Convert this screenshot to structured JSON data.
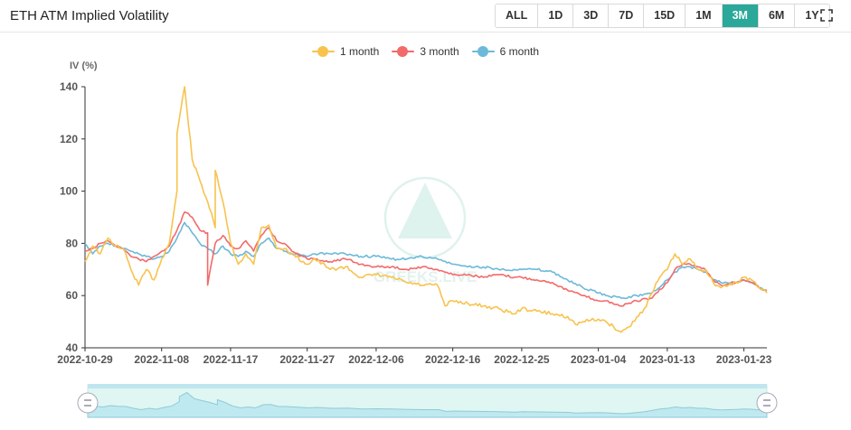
{
  "header": {
    "title": "ETH ATM Implied Volatility",
    "ranges": [
      "ALL",
      "1D",
      "3D",
      "7D",
      "15D",
      "1M",
      "3M",
      "6M",
      "1Y"
    ],
    "active_range": "3M"
  },
  "icons": {
    "fullscreen": "fullscreen-icon",
    "zoom_handle": "drag-handle-icon",
    "watermark": "greeks-live-logo"
  },
  "watermark_text": "GREEKS.LIVE",
  "chart_data": {
    "type": "line",
    "title": "",
    "ylabel": "IV (%)",
    "xlabel": "",
    "ylim": [
      40,
      140
    ],
    "yticks": [
      40,
      60,
      80,
      100,
      120,
      140
    ],
    "xlim": [
      "2022-10-29",
      "2023-01-26"
    ],
    "xticks": [
      "2022-10-29",
      "2022-11-08",
      "2022-11-17",
      "2022-11-27",
      "2022-12-06",
      "2022-12-16",
      "2022-12-25",
      "2023-01-04",
      "2023-01-13",
      "2023-01-23"
    ],
    "grid": false,
    "legend": "top-center",
    "series": [
      {
        "name": "1 month",
        "color": "#f7c34e",
        "points": [
          [
            "2022-10-29",
            73
          ],
          [
            "2022-10-30",
            79
          ],
          [
            "2022-10-31",
            76
          ],
          [
            "2022-11-01",
            82
          ],
          [
            "2022-11-02",
            79
          ],
          [
            "2022-11-03",
            78
          ],
          [
            "2022-11-04",
            70
          ],
          [
            "2022-11-05",
            64
          ],
          [
            "2022-11-06",
            70
          ],
          [
            "2022-11-07",
            66
          ],
          [
            "2022-11-08",
            74
          ],
          [
            "2022-11-09",
            80
          ],
          [
            "2022-11-10",
            100
          ],
          [
            "2022-11-10",
            122
          ],
          [
            "2022-11-11",
            140
          ],
          [
            "2022-11-12",
            112
          ],
          [
            "2022-11-13",
            104
          ],
          [
            "2022-11-14",
            96
          ],
          [
            "2022-11-15",
            86
          ],
          [
            "2022-11-15",
            108
          ],
          [
            "2022-11-16",
            96
          ],
          [
            "2022-11-17",
            80
          ],
          [
            "2022-11-18",
            72
          ],
          [
            "2022-11-19",
            76
          ],
          [
            "2022-11-20",
            72
          ],
          [
            "2022-11-21",
            86
          ],
          [
            "2022-11-22",
            87
          ],
          [
            "2022-11-23",
            78
          ],
          [
            "2022-11-24",
            78
          ],
          [
            "2022-11-25",
            76
          ],
          [
            "2022-11-27",
            72
          ],
          [
            "2022-11-28",
            74
          ],
          [
            "2022-11-30",
            70
          ],
          [
            "2022-12-02",
            71
          ],
          [
            "2022-12-04",
            67
          ],
          [
            "2022-12-06",
            68
          ],
          [
            "2022-12-08",
            67
          ],
          [
            "2022-12-10",
            65
          ],
          [
            "2022-12-12",
            64
          ],
          [
            "2022-12-14",
            64
          ],
          [
            "2022-12-15",
            56
          ],
          [
            "2022-12-16",
            58
          ],
          [
            "2022-12-18",
            57
          ],
          [
            "2022-12-20",
            56
          ],
          [
            "2022-12-22",
            55
          ],
          [
            "2022-12-24",
            53
          ],
          [
            "2022-12-25",
            55
          ],
          [
            "2022-12-27",
            54
          ],
          [
            "2022-12-29",
            53
          ],
          [
            "2022-12-31",
            52
          ],
          [
            "2023-01-01",
            49
          ],
          [
            "2023-01-02",
            50
          ],
          [
            "2023-01-04",
            51
          ],
          [
            "2023-01-05",
            50
          ],
          [
            "2023-01-06",
            48
          ],
          [
            "2023-01-07",
            46
          ],
          [
            "2023-01-08",
            48
          ],
          [
            "2023-01-10",
            55
          ],
          [
            "2023-01-11",
            61
          ],
          [
            "2023-01-12",
            67
          ],
          [
            "2023-01-13",
            70
          ],
          [
            "2023-01-14",
            76
          ],
          [
            "2023-01-15",
            72
          ],
          [
            "2023-01-16",
            74
          ],
          [
            "2023-01-17",
            70
          ],
          [
            "2023-01-18",
            70
          ],
          [
            "2023-01-19",
            65
          ],
          [
            "2023-01-20",
            63
          ],
          [
            "2023-01-21",
            64
          ],
          [
            "2023-01-22",
            65
          ],
          [
            "2023-01-23",
            67
          ],
          [
            "2023-01-24",
            66
          ],
          [
            "2023-01-25",
            63
          ],
          [
            "2023-01-26",
            61
          ]
        ]
      },
      {
        "name": "3 month",
        "color": "#f26b6b",
        "points": [
          [
            "2022-10-29",
            77
          ],
          [
            "2022-10-30",
            78
          ],
          [
            "2022-10-31",
            80
          ],
          [
            "2022-11-01",
            81
          ],
          [
            "2022-11-02",
            79
          ],
          [
            "2022-11-03",
            78
          ],
          [
            "2022-11-04",
            75
          ],
          [
            "2022-11-05",
            74
          ],
          [
            "2022-11-06",
            73
          ],
          [
            "2022-11-07",
            75
          ],
          [
            "2022-11-08",
            77
          ],
          [
            "2022-11-09",
            79
          ],
          [
            "2022-11-10",
            85
          ],
          [
            "2022-11-11",
            92
          ],
          [
            "2022-11-12",
            90
          ],
          [
            "2022-11-13",
            85
          ],
          [
            "2022-11-14",
            84
          ],
          [
            "2022-11-14",
            64
          ],
          [
            "2022-11-15",
            80
          ],
          [
            "2022-11-16",
            83
          ],
          [
            "2022-11-17",
            79
          ],
          [
            "2022-11-18",
            78
          ],
          [
            "2022-11-19",
            81
          ],
          [
            "2022-11-20",
            77
          ],
          [
            "2022-11-21",
            83
          ],
          [
            "2022-11-22",
            86
          ],
          [
            "2022-11-23",
            81
          ],
          [
            "2022-11-24",
            80
          ],
          [
            "2022-11-25",
            77
          ],
          [
            "2022-11-27",
            74
          ],
          [
            "2022-11-28",
            74
          ],
          [
            "2022-11-30",
            73
          ],
          [
            "2022-12-02",
            74
          ],
          [
            "2022-12-04",
            72
          ],
          [
            "2022-12-06",
            71
          ],
          [
            "2022-12-08",
            71
          ],
          [
            "2022-12-10",
            70
          ],
          [
            "2022-12-12",
            71
          ],
          [
            "2022-12-14",
            70
          ],
          [
            "2022-12-16",
            68
          ],
          [
            "2022-12-18",
            68
          ],
          [
            "2022-12-20",
            67
          ],
          [
            "2022-12-22",
            68
          ],
          [
            "2022-12-24",
            67
          ],
          [
            "2022-12-25",
            67
          ],
          [
            "2022-12-27",
            66
          ],
          [
            "2022-12-29",
            65
          ],
          [
            "2022-12-31",
            62
          ],
          [
            "2023-01-02",
            60
          ],
          [
            "2023-01-04",
            58
          ],
          [
            "2023-01-05",
            58
          ],
          [
            "2023-01-07",
            56
          ],
          [
            "2023-01-09",
            58
          ],
          [
            "2023-01-11",
            59
          ],
          [
            "2023-01-13",
            65
          ],
          [
            "2023-01-14",
            70
          ],
          [
            "2023-01-15",
            72
          ],
          [
            "2023-01-16",
            72
          ],
          [
            "2023-01-17",
            71
          ],
          [
            "2023-01-18",
            70
          ],
          [
            "2023-01-19",
            66
          ],
          [
            "2023-01-20",
            64
          ],
          [
            "2023-01-22",
            65
          ],
          [
            "2023-01-23",
            66
          ],
          [
            "2023-01-24",
            65
          ],
          [
            "2023-01-25",
            63
          ],
          [
            "2023-01-26",
            62
          ]
        ]
      },
      {
        "name": "6 month",
        "color": "#6cb9d9",
        "points": [
          [
            "2022-10-29",
            80
          ],
          [
            "2022-10-30",
            76
          ],
          [
            "2022-10-31",
            79
          ],
          [
            "2022-11-01",
            80
          ],
          [
            "2022-11-02",
            79
          ],
          [
            "2022-11-03",
            78
          ],
          [
            "2022-11-04",
            77
          ],
          [
            "2022-11-05",
            76
          ],
          [
            "2022-11-06",
            75
          ],
          [
            "2022-11-07",
            74
          ],
          [
            "2022-11-08",
            75
          ],
          [
            "2022-11-09",
            77
          ],
          [
            "2022-11-10",
            82
          ],
          [
            "2022-11-11",
            88
          ],
          [
            "2022-11-12",
            84
          ],
          [
            "2022-11-13",
            80
          ],
          [
            "2022-11-14",
            78
          ],
          [
            "2022-11-15",
            76
          ],
          [
            "2022-11-16",
            79
          ],
          [
            "2022-11-17",
            76
          ],
          [
            "2022-11-18",
            75
          ],
          [
            "2022-11-19",
            77
          ],
          [
            "2022-11-20",
            75
          ],
          [
            "2022-11-21",
            80
          ],
          [
            "2022-11-22",
            82
          ],
          [
            "2022-11-23",
            78
          ],
          [
            "2022-11-24",
            77
          ],
          [
            "2022-11-25",
            76
          ],
          [
            "2022-11-27",
            75
          ],
          [
            "2022-11-28",
            76
          ],
          [
            "2022-11-30",
            76
          ],
          [
            "2022-12-02",
            76
          ],
          [
            "2022-12-04",
            75
          ],
          [
            "2022-12-06",
            75
          ],
          [
            "2022-12-08",
            74
          ],
          [
            "2022-12-10",
            74
          ],
          [
            "2022-12-12",
            75
          ],
          [
            "2022-12-14",
            74
          ],
          [
            "2022-12-16",
            72
          ],
          [
            "2022-12-18",
            71
          ],
          [
            "2022-12-20",
            71
          ],
          [
            "2022-12-22",
            70
          ],
          [
            "2022-12-24",
            70
          ],
          [
            "2022-12-25",
            70
          ],
          [
            "2022-12-27",
            70
          ],
          [
            "2022-12-29",
            69
          ],
          [
            "2022-12-31",
            66
          ],
          [
            "2023-01-02",
            63
          ],
          [
            "2023-01-04",
            61
          ],
          [
            "2023-01-05",
            60
          ],
          [
            "2023-01-07",
            59
          ],
          [
            "2023-01-09",
            60
          ],
          [
            "2023-01-11",
            61
          ],
          [
            "2023-01-13",
            66
          ],
          [
            "2023-01-14",
            69
          ],
          [
            "2023-01-15",
            71
          ],
          [
            "2023-01-16",
            71
          ],
          [
            "2023-01-17",
            70
          ],
          [
            "2023-01-18",
            69
          ],
          [
            "2023-01-19",
            66
          ],
          [
            "2023-01-20",
            65
          ],
          [
            "2023-01-22",
            65
          ],
          [
            "2023-01-23",
            66
          ],
          [
            "2023-01-24",
            65
          ],
          [
            "2023-01-25",
            63
          ],
          [
            "2023-01-26",
            62
          ]
        ]
      }
    ]
  }
}
